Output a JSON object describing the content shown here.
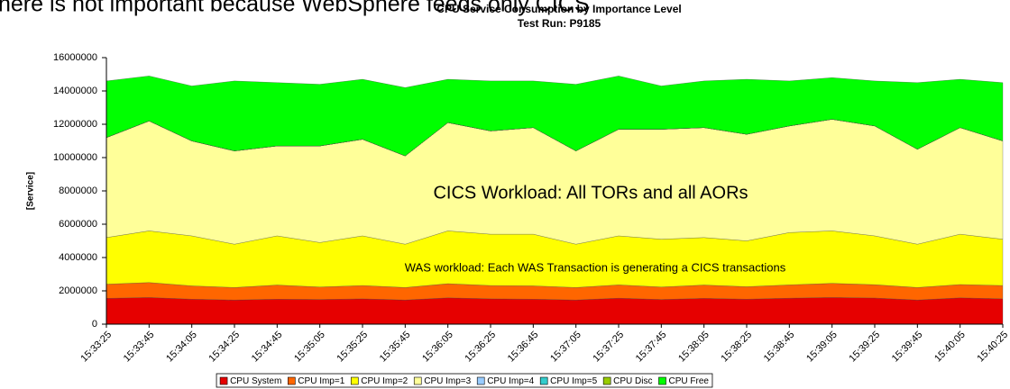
{
  "chart_data": {
    "type": "stacked_area",
    "annotations": [
      "here is not important because WebSphere feeds only CICS",
      "CICS Workload: All TORs and all AORs",
      "WAS workload: Each WAS Transaction is generating a CICS transactions"
    ],
    "title": "CPU Service Consumption by Importance Level",
    "subtitle": "Test Run: P9185",
    "y_label": "[Service]",
    "categories": [
      "15:33:25",
      "15:33:45",
      "15:34:05",
      "15:34:25",
      "15:34:45",
      "15:35:05",
      "15:35:25",
      "15:35:45",
      "15:36:05",
      "15:36:25",
      "15:36:45",
      "15:37:05",
      "15:37:25",
      "15:37:45",
      "15:38:05",
      "15:38:25",
      "15:38:45",
      "15:39:05",
      "15:39:25",
      "15:39:45",
      "15:40:05",
      "15:40:25"
    ],
    "ylim": [
      0,
      16000000
    ],
    "yticks": [
      0,
      2000000,
      4000000,
      6000000,
      8000000,
      10000000,
      12000000,
      14000000,
      16000000
    ],
    "legend": "bottom",
    "series": [
      {
        "name": "CPU System",
        "color": "#e60000",
        "values": [
          1550000,
          1600000,
          1500000,
          1450000,
          1500000,
          1480000,
          1520000,
          1450000,
          1580000,
          1520000,
          1500000,
          1450000,
          1560000,
          1480000,
          1550000,
          1500000,
          1560000,
          1600000,
          1570000,
          1450000,
          1580000,
          1520000
        ]
      },
      {
        "name": "CPU Imp=1",
        "color": "#ff6600",
        "values": [
          850000,
          900000,
          800000,
          750000,
          850000,
          750000,
          800000,
          750000,
          850000,
          800000,
          800000,
          750000,
          800000,
          750000,
          800000,
          750000,
          800000,
          850000,
          800000,
          750000,
          800000,
          800000
        ]
      },
      {
        "name": "CPU Imp=2",
        "color": "#ffff00",
        "values": [
          2800000,
          3100000,
          3000000,
          2600000,
          2950000,
          2670000,
          2980000,
          2600000,
          3170000,
          3080000,
          3100000,
          2600000,
          2940000,
          2870000,
          2850000,
          2750000,
          3140000,
          3150000,
          2930000,
          2600000,
          3020000,
          2780000
        ]
      },
      {
        "name": "CPU Imp=3",
        "color": "#ffff99",
        "values": [
          6000000,
          6600000,
          5700000,
          5600000,
          5400000,
          5800000,
          5800000,
          5300000,
          6500000,
          6200000,
          6400000,
          5600000,
          6400000,
          6600000,
          6600000,
          6400000,
          6400000,
          6700000,
          6600000,
          5700000,
          6400000,
          5900000
        ]
      },
      {
        "name": "CPU Imp=4",
        "color": "#99ccff",
        "values": [
          0,
          0,
          0,
          0,
          0,
          0,
          0,
          0,
          0,
          0,
          0,
          0,
          0,
          0,
          0,
          0,
          0,
          0,
          0,
          0,
          0,
          0
        ]
      },
      {
        "name": "CPU Imp=5",
        "color": "#33cccc",
        "values": [
          0,
          0,
          0,
          0,
          0,
          0,
          0,
          0,
          0,
          0,
          0,
          0,
          0,
          0,
          0,
          0,
          0,
          0,
          0,
          0,
          0,
          0
        ]
      },
      {
        "name": "CPU Disc",
        "color": "#99cc00",
        "values": [
          0,
          0,
          0,
          0,
          0,
          0,
          0,
          0,
          0,
          0,
          0,
          0,
          0,
          0,
          0,
          0,
          0,
          0,
          0,
          0,
          0,
          0
        ]
      },
      {
        "name": "CPU Free",
        "color": "#00ff00",
        "values": [
          3400000,
          2700000,
          3300000,
          4200000,
          3800000,
          3700000,
          3600000,
          4100000,
          2600000,
          3000000,
          2800000,
          4000000,
          3200000,
          2600000,
          2800000,
          3300000,
          2700000,
          2500000,
          2700000,
          4000000,
          2900000,
          3500000
        ]
      }
    ]
  }
}
